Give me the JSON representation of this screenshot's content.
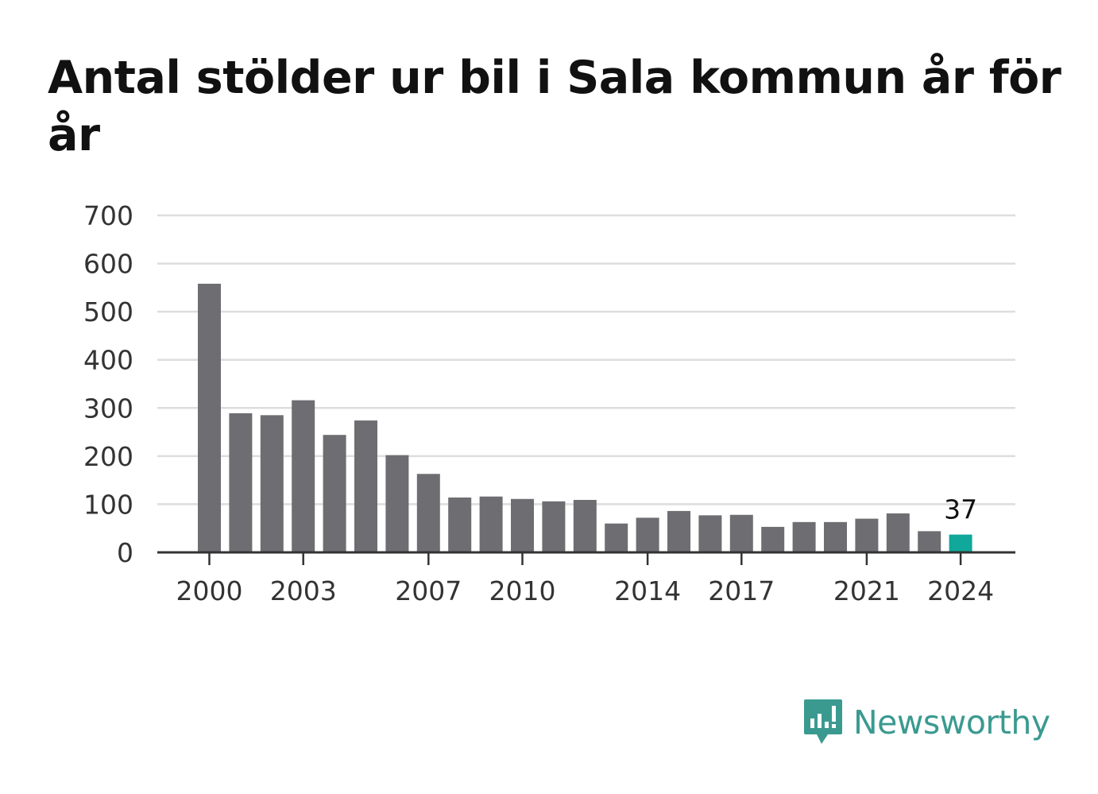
{
  "title": "Antal stölder ur bil i Sala kommun år för år",
  "brand": "Newsworthy",
  "colors": {
    "bar": "#6e6d72",
    "highlight": "#10a89a",
    "grid": "#dddddd",
    "axis": "#333333",
    "brand": "#3a9a90"
  },
  "chart_data": {
    "type": "bar",
    "categories": [
      "2000",
      "2001",
      "2002",
      "2003",
      "2004",
      "2005",
      "2006",
      "2007",
      "2008",
      "2009",
      "2010",
      "2011",
      "2012",
      "2013",
      "2014",
      "2015",
      "2016",
      "2017",
      "2018",
      "2019",
      "2020",
      "2021",
      "2022",
      "2023",
      "2024"
    ],
    "values": [
      558,
      289,
      285,
      316,
      244,
      274,
      202,
      163,
      114,
      116,
      111,
      106,
      109,
      60,
      72,
      86,
      77,
      78,
      53,
      63,
      63,
      70,
      81,
      44,
      37
    ],
    "x_tick_labels": [
      "2000",
      "2003",
      "2007",
      "2010",
      "2014",
      "2017",
      "2021",
      "2024"
    ],
    "y_ticks": [
      0,
      100,
      200,
      300,
      400,
      500,
      600,
      700
    ],
    "ylim": [
      0,
      700
    ],
    "highlight_index": 24,
    "data_labels": [
      {
        "category": "2024",
        "text": "37"
      }
    ],
    "grid": true,
    "legend": "none"
  }
}
